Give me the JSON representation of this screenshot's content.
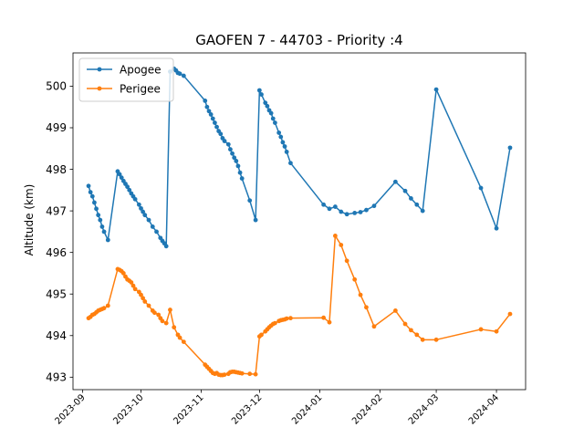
{
  "chart_data": {
    "type": "line",
    "title": "GAOFEN 7 - 44703 - Priority :4",
    "xlabel": "",
    "ylabel": "Altitude (km)",
    "ylim": [
      492.7,
      500.8
    ],
    "xlim": [
      "2023-08-27",
      "2024-04-16"
    ],
    "y_ticks": [
      493,
      494,
      495,
      496,
      497,
      498,
      499,
      500
    ],
    "x_ticks": [
      "2023-09-01",
      "2023-10-01",
      "2023-11-01",
      "2023-12-01",
      "2024-01-01",
      "2024-02-01",
      "2024-03-01",
      "2024-04-01"
    ],
    "x_tick_labels": [
      "2023-09",
      "2023-10",
      "2023-11",
      "2023-12",
      "2024-01",
      "2024-02",
      "2024-03",
      "2024-04"
    ],
    "legend_position": "upper-left",
    "grid": false,
    "series": [
      {
        "name": "Apogee",
        "color": "#1f77b4",
        "points": [
          [
            "2023-09-04",
            497.6
          ],
          [
            "2023-09-05",
            497.45
          ],
          [
            "2023-09-06",
            497.35
          ],
          [
            "2023-09-07",
            497.2
          ],
          [
            "2023-09-08",
            497.05
          ],
          [
            "2023-09-09",
            496.9
          ],
          [
            "2023-09-10",
            496.78
          ],
          [
            "2023-09-11",
            496.62
          ],
          [
            "2023-09-12",
            496.5
          ],
          [
            "2023-09-14",
            496.3
          ],
          [
            "2023-09-19",
            497.95
          ],
          [
            "2023-09-20",
            497.88
          ],
          [
            "2023-09-21",
            497.8
          ],
          [
            "2023-09-22",
            497.72
          ],
          [
            "2023-09-23",
            497.65
          ],
          [
            "2023-09-24",
            497.58
          ],
          [
            "2023-09-25",
            497.5
          ],
          [
            "2023-09-26",
            497.42
          ],
          [
            "2023-09-27",
            497.35
          ],
          [
            "2023-09-28",
            497.28
          ],
          [
            "2023-09-30",
            497.15
          ],
          [
            "2023-10-01",
            497.06
          ],
          [
            "2023-10-02",
            496.98
          ],
          [
            "2023-10-03",
            496.9
          ],
          [
            "2023-10-05",
            496.78
          ],
          [
            "2023-10-07",
            496.62
          ],
          [
            "2023-10-09",
            496.5
          ],
          [
            "2023-10-11",
            496.35
          ],
          [
            "2023-10-12",
            496.28
          ],
          [
            "2023-10-13",
            496.22
          ],
          [
            "2023-10-14",
            496.15
          ],
          [
            "2023-10-16",
            500.35
          ],
          [
            "2023-10-18",
            500.42
          ],
          [
            "2023-10-19",
            500.38
          ],
          [
            "2023-10-20",
            500.32
          ],
          [
            "2023-10-21",
            500.3
          ],
          [
            "2023-10-23",
            500.25
          ],
          [
            "2023-11-03",
            499.65
          ],
          [
            "2023-11-04",
            499.5
          ],
          [
            "2023-11-05",
            499.4
          ],
          [
            "2023-11-06",
            499.32
          ],
          [
            "2023-11-07",
            499.22
          ],
          [
            "2023-11-08",
            499.12
          ],
          [
            "2023-11-09",
            499.02
          ],
          [
            "2023-11-10",
            498.92
          ],
          [
            "2023-11-11",
            498.85
          ],
          [
            "2023-11-12",
            498.75
          ],
          [
            "2023-11-13",
            498.68
          ],
          [
            "2023-11-15",
            498.6
          ],
          [
            "2023-11-16",
            498.48
          ],
          [
            "2023-11-17",
            498.38
          ],
          [
            "2023-11-18",
            498.28
          ],
          [
            "2023-11-19",
            498.2
          ],
          [
            "2023-11-20",
            498.08
          ],
          [
            "2023-11-21",
            497.92
          ],
          [
            "2023-11-22",
            497.78
          ],
          [
            "2023-11-26",
            497.25
          ],
          [
            "2023-11-29",
            496.78
          ],
          [
            "2023-12-01",
            499.9
          ],
          [
            "2023-12-02",
            499.8
          ],
          [
            "2023-12-04",
            499.6
          ],
          [
            "2023-12-05",
            499.52
          ],
          [
            "2023-12-06",
            499.42
          ],
          [
            "2023-12-07",
            499.35
          ],
          [
            "2023-12-08",
            499.22
          ],
          [
            "2023-12-09",
            499.12
          ],
          [
            "2023-12-11",
            498.88
          ],
          [
            "2023-12-12",
            498.78
          ],
          [
            "2023-12-13",
            498.65
          ],
          [
            "2023-12-14",
            498.55
          ],
          [
            "2023-12-15",
            498.42
          ],
          [
            "2023-12-17",
            498.15
          ],
          [
            "2024-01-03",
            497.15
          ],
          [
            "2024-01-06",
            497.05
          ],
          [
            "2024-01-09",
            497.1
          ],
          [
            "2024-01-12",
            496.98
          ],
          [
            "2024-01-15",
            496.92
          ],
          [
            "2024-01-19",
            496.95
          ],
          [
            "2024-01-22",
            496.97
          ],
          [
            "2024-01-25",
            497.02
          ],
          [
            "2024-01-29",
            497.12
          ],
          [
            "2024-02-09",
            497.7
          ],
          [
            "2024-02-14",
            497.48
          ],
          [
            "2024-02-17",
            497.3
          ],
          [
            "2024-02-20",
            497.15
          ],
          [
            "2024-02-23",
            497.0
          ],
          [
            "2024-03-01",
            499.92
          ],
          [
            "2024-03-24",
            497.55
          ],
          [
            "2024-04-01",
            496.58
          ],
          [
            "2024-04-08",
            498.52
          ]
        ]
      },
      {
        "name": "Perigee",
        "color": "#ff7f0e",
        "points": [
          [
            "2023-09-04",
            494.42
          ],
          [
            "2023-09-05",
            494.45
          ],
          [
            "2023-09-06",
            494.5
          ],
          [
            "2023-09-07",
            494.52
          ],
          [
            "2023-09-08",
            494.56
          ],
          [
            "2023-09-09",
            494.6
          ],
          [
            "2023-09-10",
            494.62
          ],
          [
            "2023-09-11",
            494.64
          ],
          [
            "2023-09-12",
            494.66
          ],
          [
            "2023-09-14",
            494.72
          ],
          [
            "2023-09-19",
            495.6
          ],
          [
            "2023-09-20",
            495.58
          ],
          [
            "2023-09-21",
            495.55
          ],
          [
            "2023-09-22",
            495.5
          ],
          [
            "2023-09-23",
            495.42
          ],
          [
            "2023-09-24",
            495.35
          ],
          [
            "2023-09-25",
            495.32
          ],
          [
            "2023-09-26",
            495.28
          ],
          [
            "2023-09-27",
            495.2
          ],
          [
            "2023-09-28",
            495.12
          ],
          [
            "2023-09-30",
            495.05
          ],
          [
            "2023-10-01",
            494.98
          ],
          [
            "2023-10-02",
            494.9
          ],
          [
            "2023-10-03",
            494.82
          ],
          [
            "2023-10-05",
            494.72
          ],
          [
            "2023-10-07",
            494.6
          ],
          [
            "2023-10-08",
            494.55
          ],
          [
            "2023-10-10",
            494.5
          ],
          [
            "2023-10-11",
            494.42
          ],
          [
            "2023-10-12",
            494.35
          ],
          [
            "2023-10-14",
            494.3
          ],
          [
            "2023-10-16",
            494.62
          ],
          [
            "2023-10-18",
            494.2
          ],
          [
            "2023-10-20",
            494.02
          ],
          [
            "2023-10-21",
            493.95
          ],
          [
            "2023-10-23",
            493.85
          ],
          [
            "2023-11-03",
            493.3
          ],
          [
            "2023-11-04",
            493.25
          ],
          [
            "2023-11-05",
            493.2
          ],
          [
            "2023-11-06",
            493.15
          ],
          [
            "2023-11-07",
            493.1
          ],
          [
            "2023-11-08",
            493.08
          ],
          [
            "2023-11-09",
            493.1
          ],
          [
            "2023-11-10",
            493.06
          ],
          [
            "2023-11-11",
            493.05
          ],
          [
            "2023-11-12",
            493.05
          ],
          [
            "2023-11-13",
            493.06
          ],
          [
            "2023-11-15",
            493.08
          ],
          [
            "2023-11-16",
            493.12
          ],
          [
            "2023-11-17",
            493.13
          ],
          [
            "2023-11-18",
            493.13
          ],
          [
            "2023-11-19",
            493.12
          ],
          [
            "2023-11-20",
            493.11
          ],
          [
            "2023-11-21",
            493.1
          ],
          [
            "2023-11-22",
            493.09
          ],
          [
            "2023-11-26",
            493.08
          ],
          [
            "2023-11-29",
            493.07
          ],
          [
            "2023-12-01",
            493.98
          ],
          [
            "2023-12-02",
            494.02
          ],
          [
            "2023-12-04",
            494.1
          ],
          [
            "2023-12-05",
            494.15
          ],
          [
            "2023-12-06",
            494.2
          ],
          [
            "2023-12-07",
            494.24
          ],
          [
            "2023-12-08",
            494.28
          ],
          [
            "2023-12-09",
            494.3
          ],
          [
            "2023-12-11",
            494.35
          ],
          [
            "2023-12-12",
            494.37
          ],
          [
            "2023-12-13",
            494.38
          ],
          [
            "2023-12-14",
            494.39
          ],
          [
            "2023-12-15",
            494.41
          ],
          [
            "2023-12-17",
            494.42
          ],
          [
            "2024-01-03",
            494.43
          ],
          [
            "2024-01-06",
            494.32
          ],
          [
            "2024-01-09",
            496.4
          ],
          [
            "2024-01-12",
            496.18
          ],
          [
            "2024-01-15",
            495.8
          ],
          [
            "2024-01-19",
            495.35
          ],
          [
            "2024-01-22",
            494.98
          ],
          [
            "2024-01-25",
            494.68
          ],
          [
            "2024-01-29",
            494.22
          ],
          [
            "2024-02-09",
            494.6
          ],
          [
            "2024-02-14",
            494.28
          ],
          [
            "2024-02-17",
            494.13
          ],
          [
            "2024-02-20",
            494.02
          ],
          [
            "2024-02-23",
            493.9
          ],
          [
            "2024-03-01",
            493.9
          ],
          [
            "2024-03-24",
            494.15
          ],
          [
            "2024-04-01",
            494.1
          ],
          [
            "2024-04-08",
            494.52
          ]
        ]
      }
    ]
  }
}
